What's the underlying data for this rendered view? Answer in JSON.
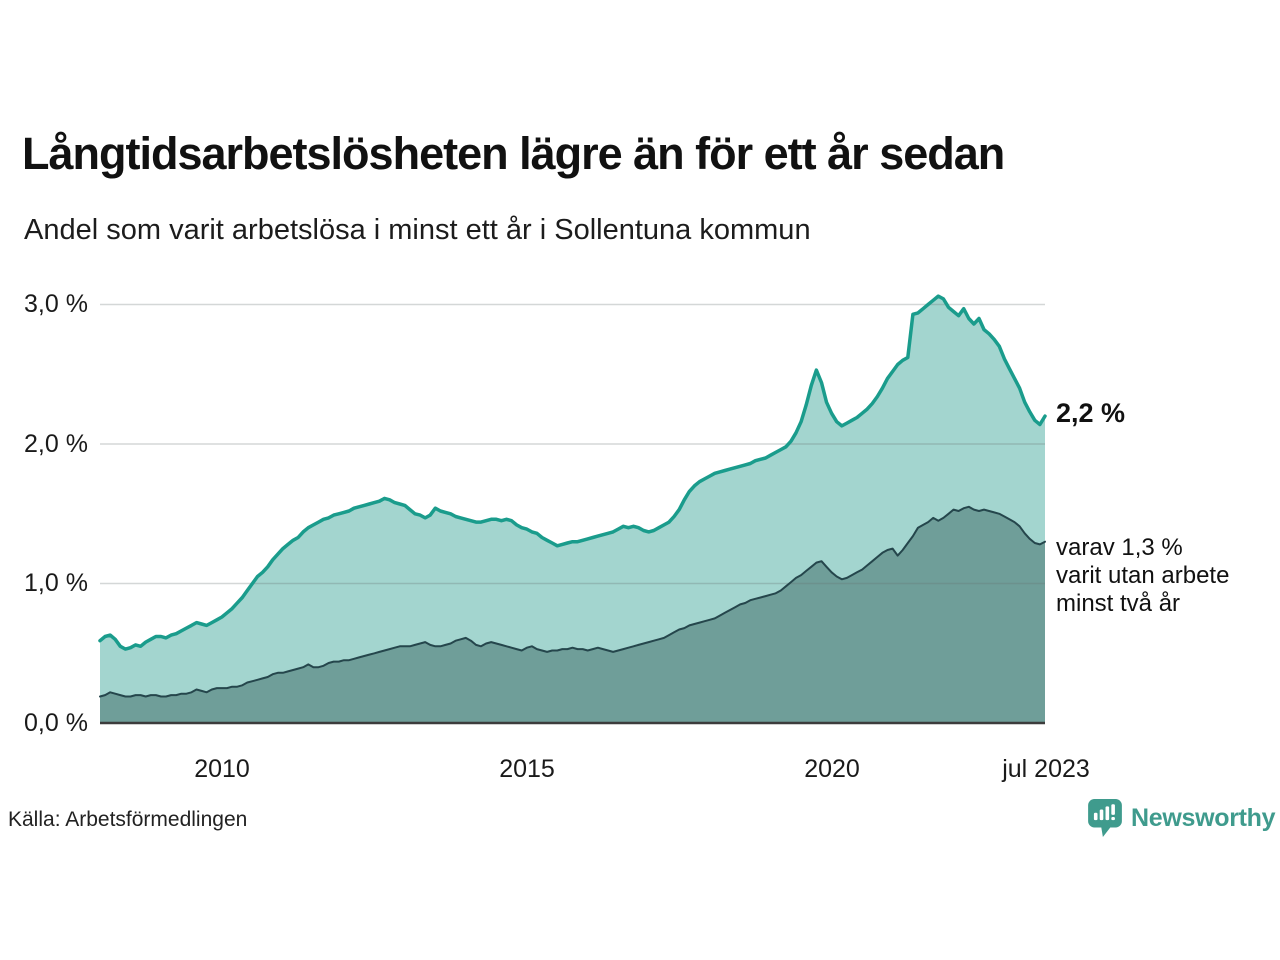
{
  "header": {
    "title": "Långtidsarbetslösheten lägre än för ett år sedan",
    "subtitle": "Andel som varit arbetslösa i minst ett år i Sollentuna kommun"
  },
  "y_axis": {
    "ticks": [
      "3,0 %",
      "2,0 %",
      "1,0 %",
      "0,0 %"
    ],
    "values": [
      3.0,
      2.0,
      1.0,
      0.0
    ]
  },
  "x_axis": {
    "ticks": [
      {
        "label": "2010",
        "year": 2010
      },
      {
        "label": "2015",
        "year": 2015
      },
      {
        "label": "2020",
        "year": 2020
      },
      {
        "label": "jul 2023",
        "year": 2023.5
      }
    ]
  },
  "annotations": {
    "total_label": "2,2 %",
    "secondary_lines": [
      "varav 1,3 %",
      "varit utan arbete",
      "minst två år"
    ]
  },
  "source": {
    "label": "Källa: Arbetsförmedlingen"
  },
  "branding": {
    "name": "Newsworthy",
    "color": "#3f9b8d",
    "icon": "newsworthy-bar-chart-pin-icon"
  },
  "colors": {
    "total_line": "#1a9c8c",
    "total_fill": "#a3d5cf",
    "secondary_line": "#25464c",
    "secondary_fill": "#6f9e99",
    "gridline": "#646e6e",
    "baseline": "#3c3c3c"
  },
  "chart_data": {
    "type": "area",
    "title": "Långtidsarbetslösheten lägre än för ett år sedan",
    "subtitle": "Andel som varit arbetslösa i minst ett år i Sollentuna kommun",
    "y_unit": "%",
    "ylim": [
      0,
      3.1
    ],
    "grid_values": [
      1.0,
      2.0,
      3.0
    ],
    "x_start_year": 2008.0,
    "x_end_year": 2023.5,
    "x_step_months": 1,
    "legend_position": "right-edge-labels",
    "series": [
      {
        "name": "Arbetslösa minst ett år",
        "end_label": "2,2 %",
        "end_value": 2.2,
        "values": [
          0.59,
          0.62,
          0.63,
          0.6,
          0.55,
          0.53,
          0.54,
          0.56,
          0.55,
          0.58,
          0.6,
          0.62,
          0.62,
          0.61,
          0.63,
          0.64,
          0.66,
          0.68,
          0.7,
          0.72,
          0.71,
          0.7,
          0.72,
          0.74,
          0.76,
          0.79,
          0.82,
          0.86,
          0.9,
          0.95,
          1.0,
          1.05,
          1.08,
          1.12,
          1.17,
          1.21,
          1.25,
          1.28,
          1.31,
          1.33,
          1.37,
          1.4,
          1.42,
          1.44,
          1.46,
          1.47,
          1.49,
          1.5,
          1.51,
          1.52,
          1.54,
          1.55,
          1.56,
          1.57,
          1.58,
          1.59,
          1.61,
          1.6,
          1.58,
          1.57,
          1.56,
          1.53,
          1.5,
          1.49,
          1.47,
          1.49,
          1.54,
          1.52,
          1.51,
          1.5,
          1.48,
          1.47,
          1.46,
          1.45,
          1.44,
          1.44,
          1.45,
          1.46,
          1.46,
          1.45,
          1.46,
          1.45,
          1.42,
          1.4,
          1.39,
          1.37,
          1.36,
          1.33,
          1.31,
          1.29,
          1.27,
          1.28,
          1.29,
          1.3,
          1.3,
          1.31,
          1.32,
          1.33,
          1.34,
          1.35,
          1.36,
          1.37,
          1.39,
          1.41,
          1.4,
          1.41,
          1.4,
          1.38,
          1.37,
          1.38,
          1.4,
          1.42,
          1.44,
          1.48,
          1.53,
          1.6,
          1.66,
          1.7,
          1.73,
          1.75,
          1.77,
          1.79,
          1.8,
          1.81,
          1.82,
          1.83,
          1.84,
          1.85,
          1.86,
          1.88,
          1.89,
          1.9,
          1.92,
          1.94,
          1.96,
          1.98,
          2.02,
          2.08,
          2.16,
          2.28,
          2.42,
          2.53,
          2.44,
          2.3,
          2.22,
          2.16,
          2.13,
          2.15,
          2.17,
          2.19,
          2.22,
          2.25,
          2.29,
          2.34,
          2.4,
          2.47,
          2.52,
          2.57,
          2.6,
          2.62,
          2.93,
          2.94,
          2.97,
          3.0,
          3.03,
          3.06,
          3.04,
          2.98,
          2.95,
          2.92,
          2.97,
          2.9,
          2.86,
          2.9,
          2.82,
          2.79,
          2.75,
          2.7,
          2.61,
          2.54,
          2.47,
          2.4,
          2.3,
          2.23,
          2.17,
          2.14,
          2.2
        ]
      },
      {
        "name": "varav utan arbete minst två år",
        "end_label": "varav 1,3 % varit utan arbete minst två år",
        "end_value": 1.3,
        "values": [
          0.19,
          0.2,
          0.22,
          0.21,
          0.2,
          0.19,
          0.19,
          0.2,
          0.2,
          0.19,
          0.2,
          0.2,
          0.19,
          0.19,
          0.2,
          0.2,
          0.21,
          0.21,
          0.22,
          0.24,
          0.23,
          0.22,
          0.24,
          0.25,
          0.25,
          0.25,
          0.26,
          0.26,
          0.27,
          0.29,
          0.3,
          0.31,
          0.32,
          0.33,
          0.35,
          0.36,
          0.36,
          0.37,
          0.38,
          0.39,
          0.4,
          0.42,
          0.4,
          0.4,
          0.41,
          0.43,
          0.44,
          0.44,
          0.45,
          0.45,
          0.46,
          0.47,
          0.48,
          0.49,
          0.5,
          0.51,
          0.52,
          0.53,
          0.54,
          0.55,
          0.55,
          0.55,
          0.56,
          0.57,
          0.58,
          0.56,
          0.55,
          0.55,
          0.56,
          0.57,
          0.59,
          0.6,
          0.61,
          0.59,
          0.56,
          0.55,
          0.57,
          0.58,
          0.57,
          0.56,
          0.55,
          0.54,
          0.53,
          0.52,
          0.54,
          0.55,
          0.53,
          0.52,
          0.51,
          0.52,
          0.52,
          0.53,
          0.53,
          0.54,
          0.53,
          0.53,
          0.52,
          0.53,
          0.54,
          0.53,
          0.52,
          0.51,
          0.52,
          0.53,
          0.54,
          0.55,
          0.56,
          0.57,
          0.58,
          0.59,
          0.6,
          0.61,
          0.63,
          0.65,
          0.67,
          0.68,
          0.7,
          0.71,
          0.72,
          0.73,
          0.74,
          0.75,
          0.77,
          0.79,
          0.81,
          0.83,
          0.85,
          0.86,
          0.88,
          0.89,
          0.9,
          0.91,
          0.92,
          0.93,
          0.95,
          0.98,
          1.01,
          1.04,
          1.06,
          1.09,
          1.12,
          1.15,
          1.16,
          1.12,
          1.08,
          1.05,
          1.03,
          1.04,
          1.06,
          1.08,
          1.1,
          1.13,
          1.16,
          1.19,
          1.22,
          1.24,
          1.25,
          1.2,
          1.24,
          1.29,
          1.34,
          1.4,
          1.42,
          1.44,
          1.47,
          1.45,
          1.47,
          1.5,
          1.53,
          1.52,
          1.54,
          1.55,
          1.53,
          1.52,
          1.53,
          1.52,
          1.51,
          1.5,
          1.48,
          1.46,
          1.44,
          1.41,
          1.36,
          1.32,
          1.29,
          1.28,
          1.3
        ]
      }
    ]
  }
}
